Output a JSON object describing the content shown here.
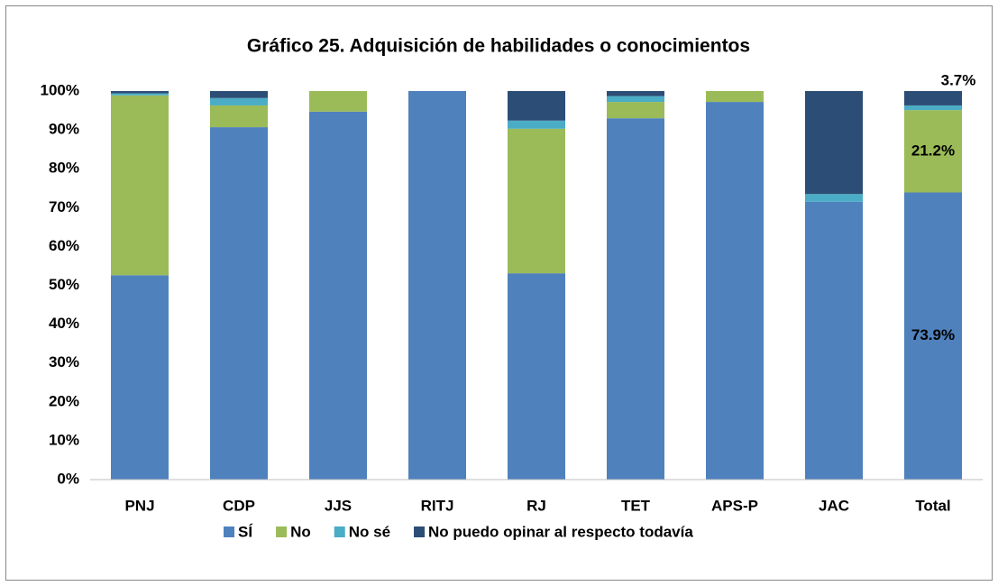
{
  "chart_data": {
    "type": "stacked_bar",
    "title": "Gráfico 25. Adquisición de habilidades o conocimientos",
    "categories": [
      "PNJ",
      "CDP",
      "JJS",
      "RITJ",
      "RJ",
      "TET",
      "APS-P",
      "JAC",
      "Total"
    ],
    "series": [
      {
        "name": "SÍ",
        "color": "#4f81bd",
        "values": [
          52.6,
          90.7,
          94.7,
          100,
          53.1,
          93.0,
          97.2,
          71.5,
          73.9
        ],
        "value_labels": [
          null,
          null,
          null,
          null,
          null,
          null,
          null,
          null,
          "73.9%"
        ]
      },
      {
        "name": "No",
        "color": "#9bbb59",
        "values": [
          46.3,
          5.6,
          5.3,
          0,
          37.2,
          4.2,
          2.8,
          0,
          21.2
        ],
        "value_labels": [
          null,
          null,
          null,
          null,
          null,
          null,
          null,
          null,
          "21.2%"
        ]
      },
      {
        "name": "No sé",
        "color": "#4bacc6",
        "values": [
          0.5,
          1.9,
          0,
          0,
          2.1,
          1.5,
          0,
          2.0,
          1.2
        ]
      },
      {
        "name": "No puedo opinar al respecto todavía",
        "color": "#2c4d75",
        "values": [
          0.6,
          1.8,
          0,
          0,
          7.6,
          1.3,
          0,
          26.5,
          3.7
        ],
        "value_labels": [
          null,
          null,
          null,
          null,
          null,
          null,
          null,
          null,
          "3.7%"
        ]
      }
    ],
    "ylim": [
      0,
      100
    ],
    "yticks": [
      {
        "value": 0,
        "label": "0%"
      },
      {
        "value": 10,
        "label": "10%"
      },
      {
        "value": 20,
        "label": "20%"
      },
      {
        "value": 30,
        "label": "30%"
      },
      {
        "value": 40,
        "label": "40%"
      },
      {
        "value": 50,
        "label": "50%"
      },
      {
        "value": 60,
        "label": "60%"
      },
      {
        "value": 70,
        "label": "70%"
      },
      {
        "value": 80,
        "label": "80%"
      },
      {
        "value": 90,
        "label": "90%"
      },
      {
        "value": 100,
        "label": "100%"
      }
    ],
    "grid": false,
    "legend": "bottom"
  }
}
